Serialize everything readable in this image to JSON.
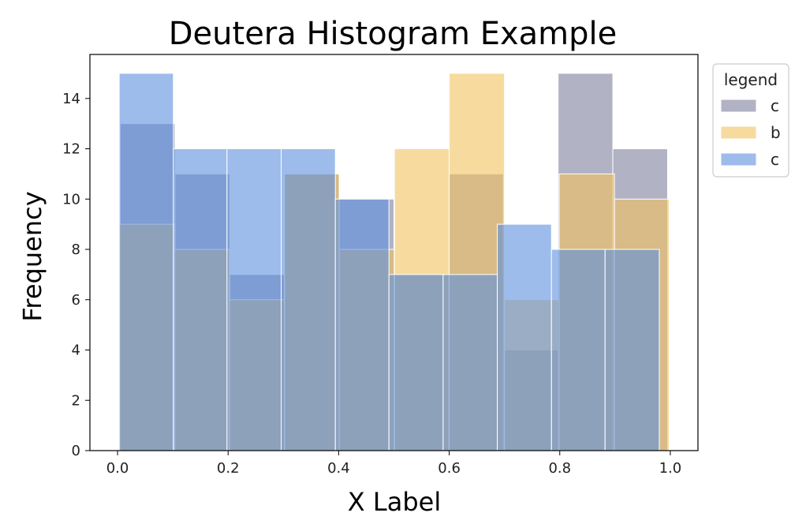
{
  "chart_data": {
    "type": "histogram",
    "title": "Deutera Histogram Example",
    "xlabel": "X Label",
    "ylabel": "Frequency",
    "xlim": [
      -0.05,
      1.05
    ],
    "ylim": [
      0,
      15.75
    ],
    "xticks": [
      "0.0",
      "0.2",
      "0.4",
      "0.6",
      "0.8",
      "1.0"
    ],
    "xtick_values": [
      0.0,
      0.2,
      0.4,
      0.6,
      0.8,
      1.0
    ],
    "yticks": [
      "0",
      "2",
      "4",
      "6",
      "8",
      "10",
      "12",
      "14"
    ],
    "ytick_values": [
      0,
      2,
      4,
      6,
      8,
      10,
      12,
      14
    ],
    "grid": false,
    "legend": {
      "title": "legend",
      "placement": "outside-top-right"
    },
    "series": [
      {
        "name": "c",
        "color": "#7f7f9f",
        "bins": [
          [
            0.005,
            0.104,
            13
          ],
          [
            0.104,
            0.203,
            11
          ],
          [
            0.203,
            0.302,
            7
          ],
          [
            0.302,
            0.401,
            11
          ],
          [
            0.401,
            0.5,
            10
          ],
          [
            0.5,
            0.599,
            7
          ],
          [
            0.599,
            0.698,
            11
          ],
          [
            0.698,
            0.797,
            4
          ],
          [
            0.797,
            0.896,
            15
          ],
          [
            0.896,
            0.995,
            12
          ]
        ]
      },
      {
        "name": "b",
        "color": "#f2c15e",
        "bins": [
          [
            0.003,
            0.103,
            9
          ],
          [
            0.103,
            0.202,
            8
          ],
          [
            0.202,
            0.302,
            6
          ],
          [
            0.302,
            0.401,
            11
          ],
          [
            0.401,
            0.501,
            8
          ],
          [
            0.501,
            0.6,
            12
          ],
          [
            0.6,
            0.7,
            15
          ],
          [
            0.7,
            0.799,
            6
          ],
          [
            0.799,
            0.899,
            11
          ],
          [
            0.899,
            0.998,
            10
          ]
        ]
      },
      {
        "name": "c",
        "color": "#5b8fde",
        "bins": [
          [
            0.003,
            0.101,
            15
          ],
          [
            0.101,
            0.198,
            12
          ],
          [
            0.198,
            0.296,
            12
          ],
          [
            0.296,
            0.394,
            12
          ],
          [
            0.394,
            0.491,
            10
          ],
          [
            0.491,
            0.589,
            7
          ],
          [
            0.589,
            0.687,
            7
          ],
          [
            0.687,
            0.785,
            9
          ],
          [
            0.785,
            0.882,
            8
          ],
          [
            0.882,
            0.98,
            8
          ]
        ]
      }
    ]
  }
}
